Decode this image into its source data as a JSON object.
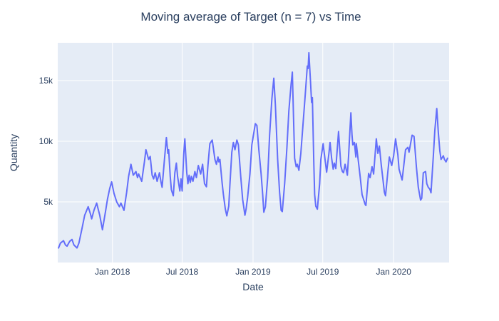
{
  "title": "Moving average of Target (n = 7) vs Time",
  "x_axis": {
    "label": "Date",
    "ticks": [
      {
        "date": "2018-01-01",
        "label": "Jan 2018"
      },
      {
        "date": "2018-07-01",
        "label": "Jul 2018"
      },
      {
        "date": "2019-01-01",
        "label": "Jan 2019"
      },
      {
        "date": "2019-07-01",
        "label": "Jul 2019"
      },
      {
        "date": "2020-01-01",
        "label": "Jan 2020"
      }
    ]
  },
  "y_axis": {
    "label": "Quantity",
    "ticks": [
      {
        "value": 5000,
        "label": "5k"
      },
      {
        "value": 10000,
        "label": "10k"
      },
      {
        "value": 15000,
        "label": "15k"
      }
    ]
  },
  "colors": {
    "line": "#636efa",
    "plot_bg": "#e5ecf6",
    "grid": "#ffffff",
    "text": "#2a3f5f",
    "figure_bg": "#ffffff"
  },
  "chart_data": {
    "type": "line",
    "title": "Moving average of Target (n = 7) vs Time",
    "xlabel": "Date",
    "ylabel": "Quantity",
    "x_range": [
      "2017-08-12",
      "2020-05-24"
    ],
    "ylim": [
      0,
      18120
    ],
    "grid": true,
    "legend_position": "none",
    "series": [
      {
        "name": "Moving average of Target (n = 7)",
        "points": [
          [
            "2017-08-14",
            1200
          ],
          [
            "2017-08-19",
            1600
          ],
          [
            "2017-08-27",
            1800
          ],
          [
            "2017-09-01",
            1450
          ],
          [
            "2017-09-05",
            1350
          ],
          [
            "2017-09-12",
            1750
          ],
          [
            "2017-09-18",
            1900
          ],
          [
            "2017-09-23",
            1450
          ],
          [
            "2017-10-01",
            1200
          ],
          [
            "2017-10-06",
            1600
          ],
          [
            "2017-10-14",
            2800
          ],
          [
            "2017-10-21",
            3900
          ],
          [
            "2017-10-30",
            4600
          ],
          [
            "2017-11-05",
            4000
          ],
          [
            "2017-11-08",
            3600
          ],
          [
            "2017-11-14",
            4300
          ],
          [
            "2017-11-21",
            4900
          ],
          [
            "2017-11-29",
            3900
          ],
          [
            "2017-12-06",
            2700
          ],
          [
            "2017-12-14",
            4200
          ],
          [
            "2017-12-19",
            5200
          ],
          [
            "2017-12-25",
            6100
          ],
          [
            "2017-12-30",
            6650
          ],
          [
            "2018-01-05",
            5700
          ],
          [
            "2018-01-12",
            5000
          ],
          [
            "2018-01-19",
            4600
          ],
          [
            "2018-01-23",
            4900
          ],
          [
            "2018-01-31",
            4300
          ],
          [
            "2018-02-07",
            5800
          ],
          [
            "2018-02-12",
            7100
          ],
          [
            "2018-02-18",
            8100
          ],
          [
            "2018-02-24",
            7200
          ],
          [
            "2018-03-03",
            7500
          ],
          [
            "2018-03-07",
            7000
          ],
          [
            "2018-03-10",
            7300
          ],
          [
            "2018-03-18",
            6700
          ],
          [
            "2018-03-25",
            8300
          ],
          [
            "2018-03-29",
            9300
          ],
          [
            "2018-04-05",
            8500
          ],
          [
            "2018-04-09",
            8750
          ],
          [
            "2018-04-14",
            7200
          ],
          [
            "2018-04-18",
            6900
          ],
          [
            "2018-04-22",
            7400
          ],
          [
            "2018-04-27",
            6700
          ],
          [
            "2018-05-03",
            7400
          ],
          [
            "2018-05-07",
            6650
          ],
          [
            "2018-05-10",
            6200
          ],
          [
            "2018-05-16",
            8500
          ],
          [
            "2018-05-21",
            10300
          ],
          [
            "2018-05-25",
            9000
          ],
          [
            "2018-05-27",
            9300
          ],
          [
            "2018-05-31",
            7100
          ],
          [
            "2018-06-03",
            6000
          ],
          [
            "2018-06-06",
            5700
          ],
          [
            "2018-06-08",
            5500
          ],
          [
            "2018-06-12",
            7400
          ],
          [
            "2018-06-16",
            8200
          ],
          [
            "2018-06-19",
            7100
          ],
          [
            "2018-06-25",
            5900
          ],
          [
            "2018-06-28",
            6900
          ],
          [
            "2018-07-01",
            5900
          ],
          [
            "2018-07-05",
            8900
          ],
          [
            "2018-07-08",
            10200
          ],
          [
            "2018-07-13",
            7400
          ],
          [
            "2018-07-16",
            6500
          ],
          [
            "2018-07-19",
            7200
          ],
          [
            "2018-07-22",
            6600
          ],
          [
            "2018-07-25",
            7100
          ],
          [
            "2018-07-29",
            6700
          ],
          [
            "2018-08-03",
            7500
          ],
          [
            "2018-08-07",
            7000
          ],
          [
            "2018-08-12",
            8000
          ],
          [
            "2018-08-18",
            7300
          ],
          [
            "2018-08-23",
            8100
          ],
          [
            "2018-08-28",
            6500
          ],
          [
            "2018-09-02",
            6250
          ],
          [
            "2018-09-06",
            8000
          ],
          [
            "2018-09-11",
            9800
          ],
          [
            "2018-09-17",
            10100
          ],
          [
            "2018-09-24",
            8500
          ],
          [
            "2018-09-28",
            8100
          ],
          [
            "2018-10-02",
            8700
          ],
          [
            "2018-10-04",
            8300
          ],
          [
            "2018-10-07",
            8500
          ],
          [
            "2018-10-13",
            6500
          ],
          [
            "2018-10-16",
            5600
          ],
          [
            "2018-10-21",
            4400
          ],
          [
            "2018-10-25",
            3850
          ],
          [
            "2018-10-30",
            4650
          ],
          [
            "2018-11-02",
            6400
          ],
          [
            "2018-11-07",
            9100
          ],
          [
            "2018-11-11",
            9900
          ],
          [
            "2018-11-15",
            9300
          ],
          [
            "2018-11-20",
            10100
          ],
          [
            "2018-11-24",
            9700
          ],
          [
            "2018-11-30",
            7100
          ],
          [
            "2018-12-05",
            5200
          ],
          [
            "2018-12-11",
            3900
          ],
          [
            "2018-12-14",
            4400
          ],
          [
            "2018-12-18",
            5400
          ],
          [
            "2018-12-24",
            7300
          ],
          [
            "2018-12-29",
            9700
          ],
          [
            "2019-01-04",
            10900
          ],
          [
            "2019-01-07",
            11450
          ],
          [
            "2019-01-11",
            11300
          ],
          [
            "2019-01-16",
            9300
          ],
          [
            "2019-01-22",
            7300
          ],
          [
            "2019-01-26",
            5600
          ],
          [
            "2019-01-29",
            4150
          ],
          [
            "2019-02-02",
            4600
          ],
          [
            "2019-02-08",
            7000
          ],
          [
            "2019-02-13",
            10500
          ],
          [
            "2019-02-19",
            13500
          ],
          [
            "2019-02-24",
            15200
          ],
          [
            "2019-02-28",
            13000
          ],
          [
            "2019-03-06",
            8500
          ],
          [
            "2019-03-11",
            5800
          ],
          [
            "2019-03-15",
            4300
          ],
          [
            "2019-03-18",
            4200
          ],
          [
            "2019-03-24",
            6500
          ],
          [
            "2019-03-30",
            9500
          ],
          [
            "2019-04-04",
            12500
          ],
          [
            "2019-04-10",
            14800
          ],
          [
            "2019-04-13",
            15700
          ],
          [
            "2019-04-17",
            11000
          ],
          [
            "2019-04-19",
            8600
          ],
          [
            "2019-04-23",
            7900
          ],
          [
            "2019-04-26",
            8100
          ],
          [
            "2019-04-30",
            7600
          ],
          [
            "2019-05-05",
            9000
          ],
          [
            "2019-05-11",
            11500
          ],
          [
            "2019-05-17",
            14000
          ],
          [
            "2019-05-22",
            16200
          ],
          [
            "2019-05-24",
            16000
          ],
          [
            "2019-05-26",
            17300
          ],
          [
            "2019-05-30",
            15000
          ],
          [
            "2019-06-02",
            13200
          ],
          [
            "2019-06-04",
            13600
          ],
          [
            "2019-06-08",
            8000
          ],
          [
            "2019-06-10",
            5600
          ],
          [
            "2019-06-13",
            4650
          ],
          [
            "2019-06-17",
            4400
          ],
          [
            "2019-06-23",
            6500
          ],
          [
            "2019-06-26",
            8500
          ],
          [
            "2019-07-02",
            9800
          ],
          [
            "2019-07-05",
            9000
          ],
          [
            "2019-07-11",
            7450
          ],
          [
            "2019-07-17",
            9000
          ],
          [
            "2019-07-20",
            9900
          ],
          [
            "2019-07-24",
            8600
          ],
          [
            "2019-07-28",
            7700
          ],
          [
            "2019-07-31",
            8200
          ],
          [
            "2019-08-04",
            7750
          ],
          [
            "2019-08-11",
            10800
          ],
          [
            "2019-08-17",
            7950
          ],
          [
            "2019-08-21",
            7500
          ],
          [
            "2019-08-24",
            7400
          ],
          [
            "2019-08-28",
            8100
          ],
          [
            "2019-09-03",
            7200
          ],
          [
            "2019-09-06",
            8800
          ],
          [
            "2019-09-12",
            12350
          ],
          [
            "2019-09-15",
            10500
          ],
          [
            "2019-09-17",
            9700
          ],
          [
            "2019-09-21",
            9900
          ],
          [
            "2019-09-25",
            8700
          ],
          [
            "2019-09-26",
            9800
          ],
          [
            "2019-10-02",
            8200
          ],
          [
            "2019-10-06",
            7100
          ],
          [
            "2019-10-11",
            5600
          ],
          [
            "2019-10-19",
            4800
          ],
          [
            "2019-10-21",
            4700
          ],
          [
            "2019-10-28",
            7350
          ],
          [
            "2019-11-01",
            7000
          ],
          [
            "2019-11-06",
            7900
          ],
          [
            "2019-11-10",
            7300
          ],
          [
            "2019-11-17",
            10200
          ],
          [
            "2019-11-21",
            9000
          ],
          [
            "2019-11-25",
            9600
          ],
          [
            "2019-11-30",
            8000
          ],
          [
            "2019-12-04",
            6900
          ],
          [
            "2019-12-08",
            5800
          ],
          [
            "2019-12-11",
            5500
          ],
          [
            "2019-12-17",
            7500
          ],
          [
            "2019-12-21",
            8700
          ],
          [
            "2019-12-27",
            8000
          ],
          [
            "2020-01-01",
            8800
          ],
          [
            "2020-01-06",
            10200
          ],
          [
            "2020-01-12",
            8900
          ],
          [
            "2020-01-15",
            7700
          ],
          [
            "2020-01-23",
            6800
          ],
          [
            "2020-01-28",
            8200
          ],
          [
            "2020-02-01",
            9300
          ],
          [
            "2020-02-07",
            9500
          ],
          [
            "2020-02-10",
            9100
          ],
          [
            "2020-02-18",
            10500
          ],
          [
            "2020-02-23",
            10400
          ],
          [
            "2020-02-29",
            7900
          ],
          [
            "2020-03-05",
            6200
          ],
          [
            "2020-03-11",
            5150
          ],
          [
            "2020-03-14",
            5300
          ],
          [
            "2020-03-18",
            7400
          ],
          [
            "2020-03-24",
            7500
          ],
          [
            "2020-03-27",
            6500
          ],
          [
            "2020-03-31",
            6200
          ],
          [
            "2020-04-04",
            6050
          ],
          [
            "2020-04-07",
            5750
          ],
          [
            "2020-04-13",
            8700
          ],
          [
            "2020-04-17",
            10900
          ],
          [
            "2020-04-22",
            12700
          ],
          [
            "2020-04-26",
            10700
          ],
          [
            "2020-04-30",
            9200
          ],
          [
            "2020-05-03",
            8500
          ],
          [
            "2020-05-09",
            8800
          ],
          [
            "2020-05-12",
            8500
          ],
          [
            "2020-05-16",
            8300
          ],
          [
            "2020-05-20",
            8600
          ]
        ]
      }
    ]
  }
}
